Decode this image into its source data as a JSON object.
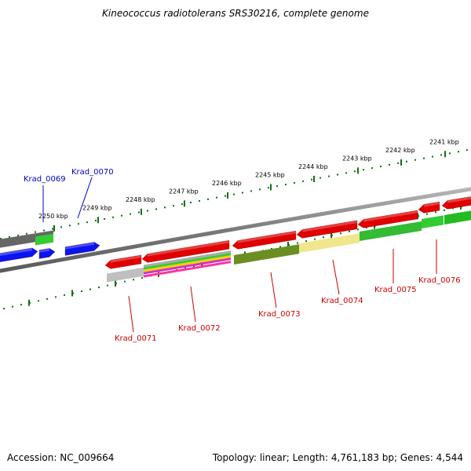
{
  "title": "Kineococcus radiotolerans SRS30216, complete genome",
  "accession_text": "Accession: NC_009664",
  "topology_text": "Topology: linear; Length: 4,761,183 bp; Genes: 4,544",
  "scale_ticks": [
    "2241 kbp",
    "2242 kbp",
    "2243 kbp",
    "2244 kbp",
    "2245 kbp",
    "2246 kbp",
    "2247 kbp",
    "2248 kbp",
    "2249 kbp",
    "2250 kbp"
  ],
  "genes": [
    {
      "name": "Krad_0069",
      "color": "#0000cc",
      "strand": "forward"
    },
    {
      "name": "Krad_0070",
      "color": "#0000cc",
      "strand": "forward"
    },
    {
      "name": "Krad_0071",
      "color": "#cc0000",
      "strand": "reverse"
    },
    {
      "name": "Krad_0072",
      "color": "#cc0000",
      "strand": "reverse"
    },
    {
      "name": "Krad_0073",
      "color": "#cc0000",
      "strand": "reverse"
    },
    {
      "name": "Krad_0074",
      "color": "#cc0000",
      "strand": "reverse"
    },
    {
      "name": "Krad_0075",
      "color": "#cc0000",
      "strand": "reverse"
    },
    {
      "name": "Krad_0076",
      "color": "#cc0000",
      "strand": "reverse"
    }
  ],
  "colors": {
    "forward_gene": "#0a14f0",
    "reverse_gene": "#e00000",
    "backbone": "#808080",
    "tick": "#107010"
  }
}
